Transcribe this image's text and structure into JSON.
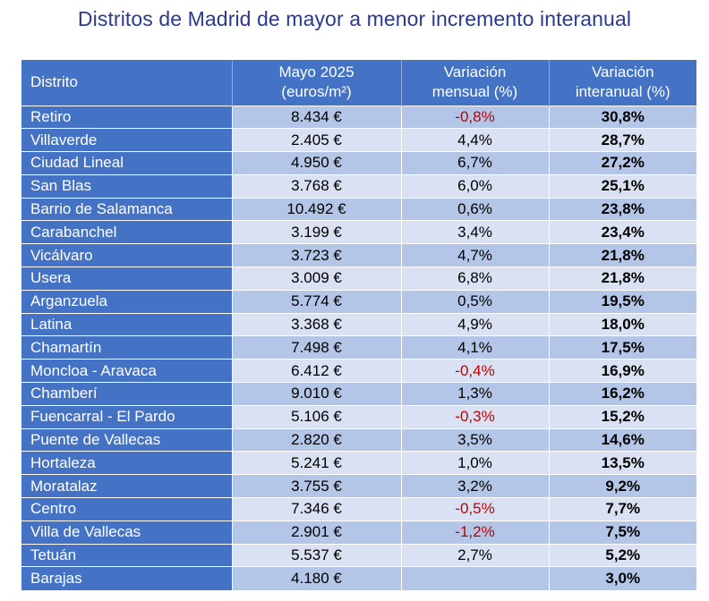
{
  "title": "Distritos de Madrid de mayor a menor incremento interanual",
  "colors": {
    "title": "#2b3a8f",
    "header_bg": "#4472c4",
    "row_odd": "#b4c6e7",
    "row_even": "#d9e1f2",
    "negative": "#c00000"
  },
  "headers": {
    "distrito": "Distrito",
    "precio_l1": "Mayo 2025",
    "precio_l2": "(euros/m²)",
    "mensual_l1": "Variación",
    "mensual_l2": "mensual (%)",
    "interanual_l1": "Variación",
    "interanual_l2": "interanual (%)"
  },
  "rows": [
    {
      "distrito": "Retiro",
      "precio": "8.434 €",
      "mensual": "-0,8%",
      "interanual": "30,8%"
    },
    {
      "distrito": "Villaverde",
      "precio": "2.405 €",
      "mensual": "4,4%",
      "interanual": "28,7%"
    },
    {
      "distrito": "Ciudad Lineal",
      "precio": "4.950 €",
      "mensual": "6,7%",
      "interanual": "27,2%"
    },
    {
      "distrito": "San Blas",
      "precio": "3.768 €",
      "mensual": "6,0%",
      "interanual": "25,1%"
    },
    {
      "distrito": "Barrio de Salamanca",
      "precio": "10.492 €",
      "mensual": "0,6%",
      "interanual": "23,8%"
    },
    {
      "distrito": "Carabanchel",
      "precio": "3.199 €",
      "mensual": "3,4%",
      "interanual": "23,4%"
    },
    {
      "distrito": "Vicálvaro",
      "precio": "3.723 €",
      "mensual": "4,7%",
      "interanual": "21,8%"
    },
    {
      "distrito": "Usera",
      "precio": "3.009 €",
      "mensual": "6,8%",
      "interanual": "21,8%"
    },
    {
      "distrito": "Arganzuela",
      "precio": "5.774 €",
      "mensual": "0,5%",
      "interanual": "19,5%"
    },
    {
      "distrito": "Latina",
      "precio": "3.368 €",
      "mensual": "4,9%",
      "interanual": "18,0%"
    },
    {
      "distrito": "Chamartín",
      "precio": "7.498 €",
      "mensual": "4,1%",
      "interanual": "17,5%"
    },
    {
      "distrito": "Moncloa - Aravaca",
      "precio": "6.412 €",
      "mensual": "-0,4%",
      "interanual": "16,9%"
    },
    {
      "distrito": "Chamberí",
      "precio": "9.010 €",
      "mensual": "1,3%",
      "interanual": "16,2%"
    },
    {
      "distrito": "Fuencarral - El Pardo",
      "precio": "5.106 €",
      "mensual": "-0,3%",
      "interanual": "15,2%"
    },
    {
      "distrito": "Puente de Vallecas",
      "precio": "2.820 €",
      "mensual": "3,5%",
      "interanual": "14,6%"
    },
    {
      "distrito": "Hortaleza",
      "precio": "5.241 €",
      "mensual": "1,0%",
      "interanual": "13,5%"
    },
    {
      "distrito": "Moratalaz",
      "precio": "3.755 €",
      "mensual": "3,2%",
      "interanual": "9,2%"
    },
    {
      "distrito": "Centro",
      "precio": "7.346 €",
      "mensual": "-0,5%",
      "interanual": "7,7%"
    },
    {
      "distrito": "Villa de Vallecas",
      "precio": "2.901 €",
      "mensual": "-1,2%",
      "interanual": "7,5%"
    },
    {
      "distrito": "Tetuán",
      "precio": "5.537 €",
      "mensual": "2,7%",
      "interanual": "5,2%"
    },
    {
      "distrito": "Barajas",
      "precio": "4.180 €",
      "mensual": "",
      "interanual": "3,0%"
    }
  ]
}
